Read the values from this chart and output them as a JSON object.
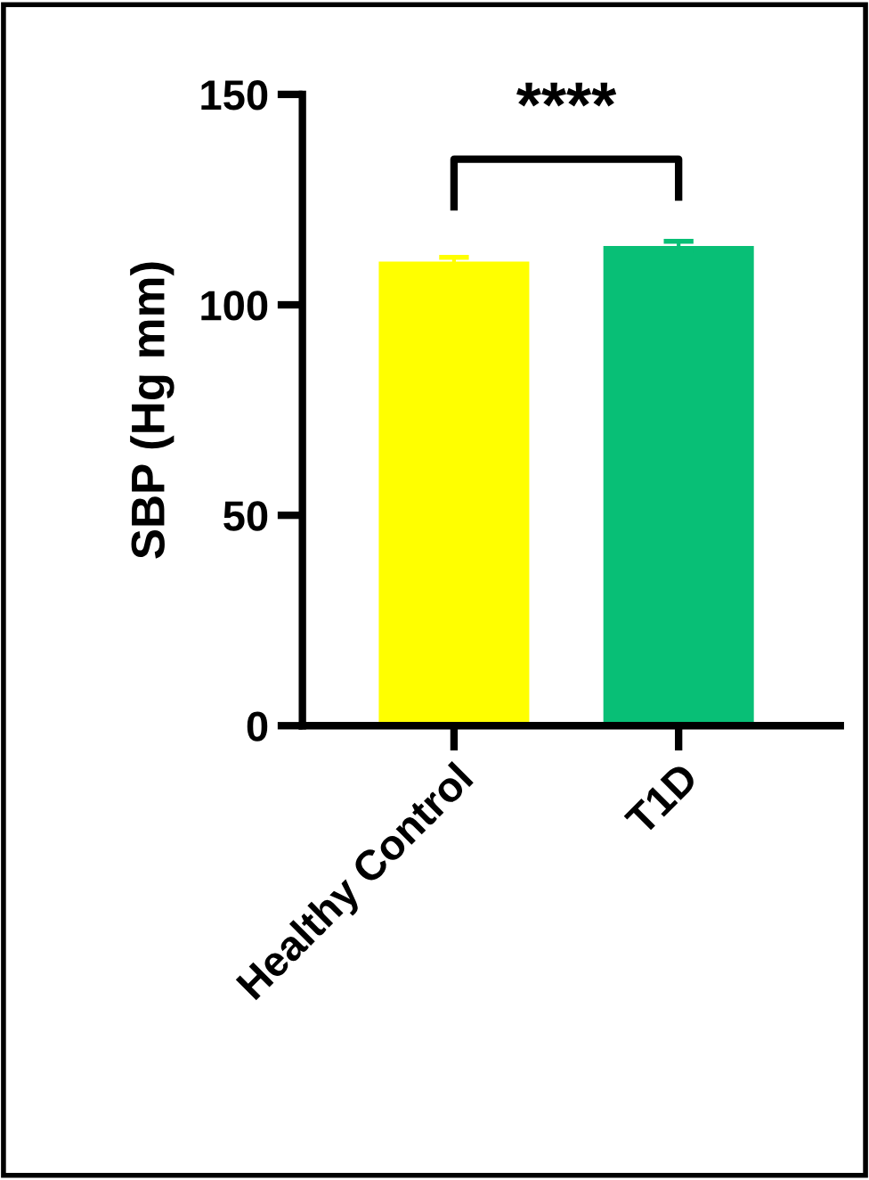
{
  "chart_data": {
    "type": "bar",
    "ylabel": "SBP (Hg mm)",
    "categories": [
      "Healthy Control",
      "T1D"
    ],
    "values": [
      110.3,
      114.0
    ],
    "errors": [
      1.0,
      1.1
    ],
    "colors": [
      "#ffff00",
      "#08bf76"
    ],
    "ylim": [
      0,
      150
    ],
    "yticks": [
      0,
      50,
      100,
      150
    ],
    "grid": false,
    "annotations": [
      "****"
    ]
  }
}
